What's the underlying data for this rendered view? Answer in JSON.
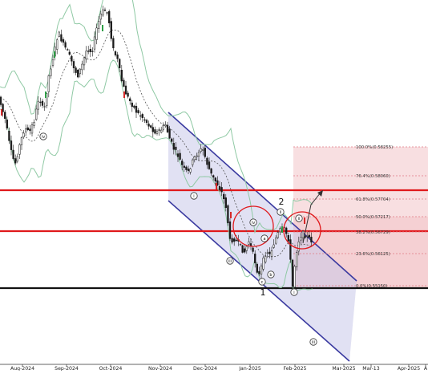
{
  "chart_data": {
    "type": "candlestick",
    "x_ticks": [
      "Aug-2024",
      "Sep-2024",
      "Oct-2024",
      "Nov-2024",
      "Dec-2024",
      "Jan-2025",
      "Feb-2025",
      "Mar-2025",
      "Mar-13",
      "Apr-2025",
      "A"
    ],
    "fib_levels": [
      {
        "label": "100.0%(0.58255)"
      },
      {
        "label": "76.4%(0.58060)"
      },
      {
        "label": "61.8%(0.57704)"
      },
      {
        "label": "50.0%(0.57217)"
      },
      {
        "label": "38.2%(0.56729)"
      },
      {
        "label": "23.6%(0.56125)"
      },
      {
        "label": "0.0%(0.55150)"
      }
    ],
    "wave_labels": {
      "top_two": "2",
      "bottom_one": "1",
      "circled": [
        "iv",
        "i",
        "iii",
        "iv",
        "a",
        "b",
        "c",
        "ii",
        "i",
        "ii",
        "iii"
      ]
    },
    "colors": {
      "candle": "#1a1a1a",
      "channel": "#3a3aa0",
      "channel_fill": "#c8c8ea",
      "bollinger": "#8fc9a4",
      "moving_average": "#555555",
      "horizontal_lines": "#e0191c",
      "support_line": "#111111",
      "fib_zone": "#f3c4c8"
    }
  }
}
